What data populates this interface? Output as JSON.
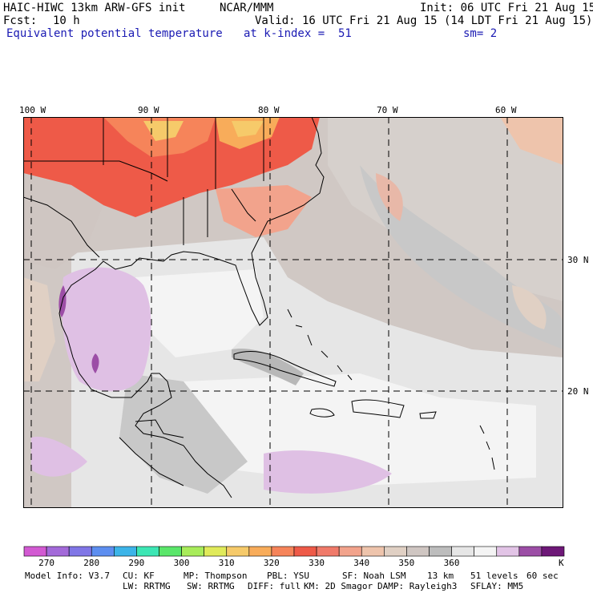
{
  "header": {
    "model_title": "HAIC-HIWC 13km ARW-GFS init",
    "org": "NCAR/MMM",
    "init": "Init: 06 UTC Fri 21 Aug 15",
    "fcst_label": "Fcst:",
    "fcst_value": "10 h",
    "valid": "Valid: 16 UTC Fri 21 Aug 15 (14 LDT Fri 21 Aug 15)",
    "field": "Equivalent potential temperature",
    "k_index": "at k-index =  51",
    "smoothing": "sm= 2"
  },
  "map": {
    "lon_labels": [
      "100 W",
      "90 W",
      "80 W",
      "70 W",
      "60 W"
    ],
    "lat_labels": [
      "30 N",
      "20 N"
    ]
  },
  "colorbar": {
    "colors": [
      "#d25ad2",
      "#a36ad9",
      "#8076e6",
      "#5d8ef0",
      "#3cb4e8",
      "#3ce6b4",
      "#5ae66a",
      "#a8ec5a",
      "#e0ea5a",
      "#f6ca6a",
      "#f8ac5a",
      "#f6845a",
      "#ee5a48",
      "#f07a6a",
      "#f2a38c",
      "#eec4ac",
      "#e0d0c4",
      "#cfc6c2",
      "#bdbdbd",
      "#e6e6e6",
      "#f4f4f4",
      "#e2c4e6",
      "#9c4ea6",
      "#6e1878"
    ],
    "labels": [
      "270",
      "280",
      "290",
      "300",
      "310",
      "320",
      "330",
      "340",
      "350",
      "360"
    ],
    "unit": "K"
  },
  "footer": {
    "line1": [
      "Model Info: V3.7",
      "CU: KF",
      "MP: Thompson",
      "PBL: YSU",
      "SF: Noah LSM",
      "13 km",
      "51 levels",
      "60 sec"
    ],
    "line2": [
      "LW: RRTMG",
      "SW: RRTMG",
      "DIFF: full",
      "KM: 2D Smagor",
      "DAMP: Rayleigh3",
      "SFLAY: MM5"
    ]
  }
}
